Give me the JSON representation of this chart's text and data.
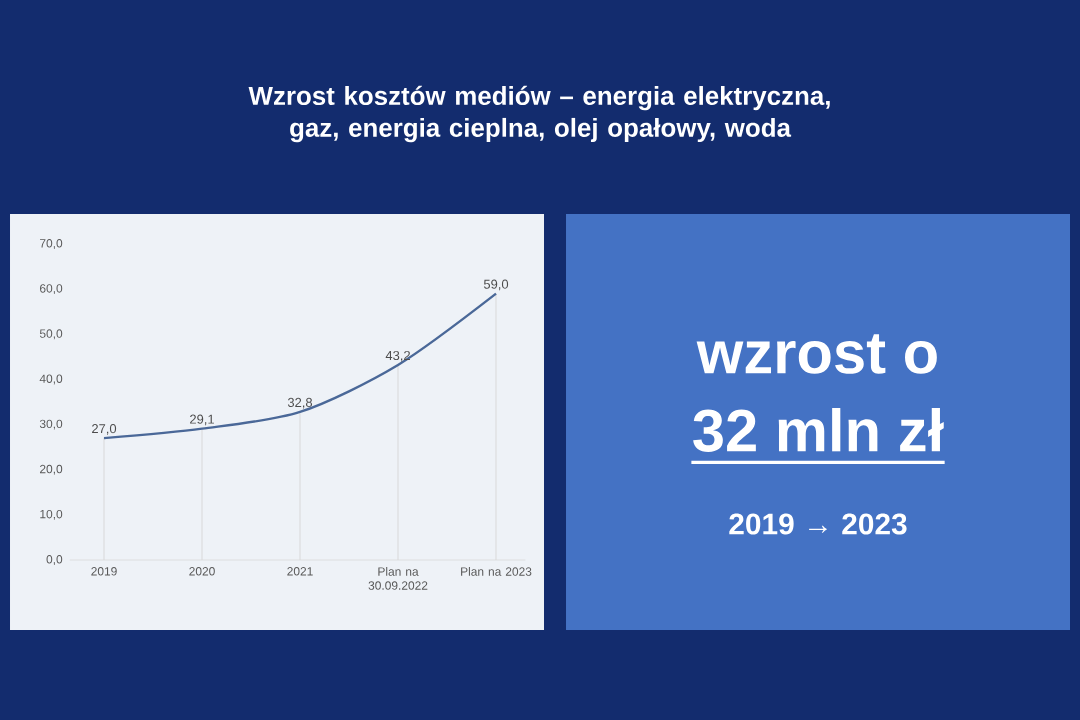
{
  "chart_data": [
    {
      "type": "line",
      "title": "Wzrost kosztów mediów – energia elektryczna, gaz, energia cieplna, olej opałowy, woda",
      "categories": [
        "2019",
        "2020",
        "2021",
        "Plan na 30.09.2022",
        "Plan na 2023"
      ],
      "values": [
        27.0,
        29.1,
        32.8,
        43.2,
        59.0
      ],
      "color": "#4a6898",
      "value_labels": [
        "27,0",
        "29,1",
        "32,8",
        "43,2",
        "59,0"
      ],
      "marker": "none",
      "ylim": [
        0,
        70
      ],
      "yticks": [
        {
          "value": 0,
          "label": "0,0"
        },
        {
          "value": 10,
          "label": "10,0"
        },
        {
          "value": 20,
          "label": "20,0"
        },
        {
          "value": 30,
          "label": "30,0"
        },
        {
          "value": 40,
          "label": "40,0"
        },
        {
          "value": 50,
          "label": "50,0"
        },
        {
          "value": 60,
          "label": "60,0"
        },
        {
          "value": 70,
          "label": "70,0"
        }
      ]
    },
    {
      "type": "other",
      "title": "wzrost o",
      "annotations": [
        "32 mln zł",
        "2019 → 2023"
      ]
    }
  ]
}
